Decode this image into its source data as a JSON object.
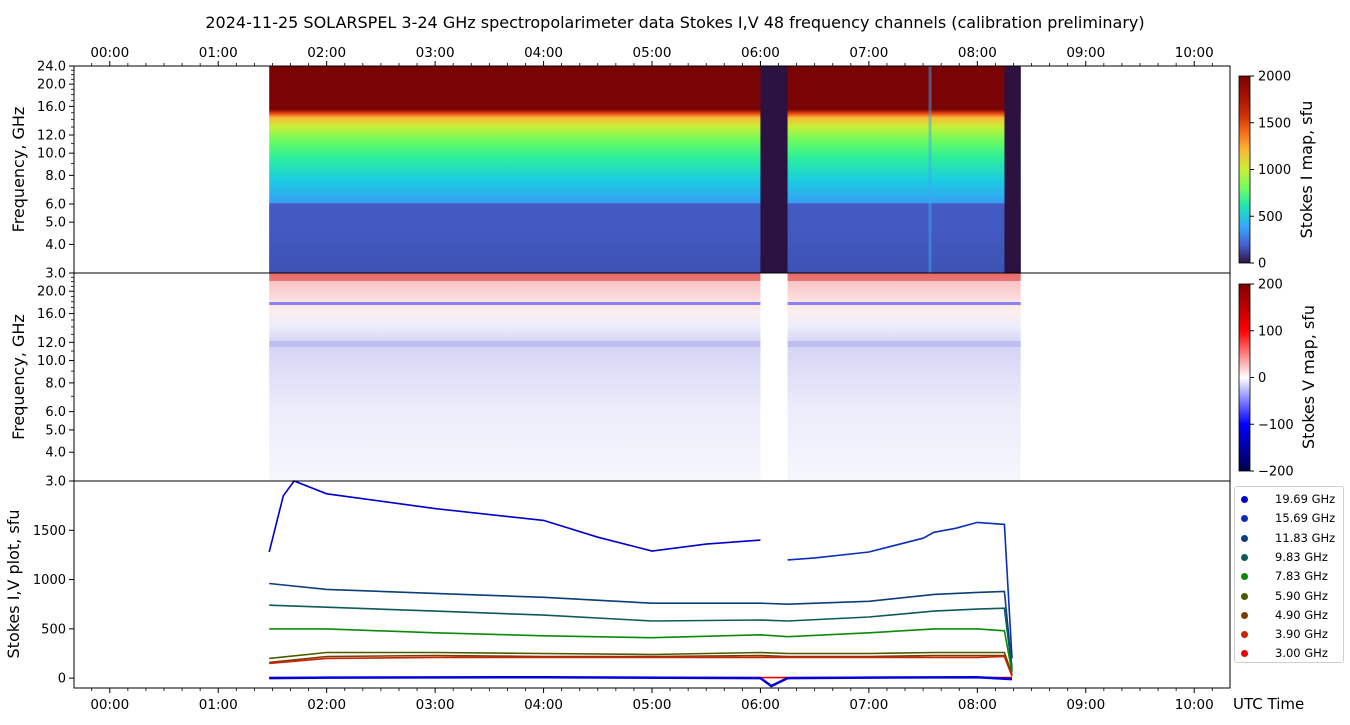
{
  "title": "2024-11-25  SOLARSPEL  3-24 GHz spectropolarimeter data   Stokes I,V   48 frequency channels   (calibration preliminary)",
  "time_label": "UTC Time",
  "time_ticks": [
    "00:00",
    "01:00",
    "02:00",
    "03:00",
    "04:00",
    "05:00",
    "06:00",
    "07:00",
    "08:00",
    "09:00",
    "10:00"
  ],
  "panels": {
    "stokes_i_map": {
      "ylabel": "Frequency, GHz",
      "colorbar_label": "Stokes I map, sfu",
      "colorbar_ticks": [
        "0",
        "500",
        "1000",
        "1500",
        "2000"
      ]
    },
    "stokes_v_map": {
      "ylabel": "Frequency, GHz",
      "colorbar_label": "Stokes V map, sfu",
      "colorbar_ticks": [
        "−200",
        "−100",
        "0",
        "100",
        "200"
      ]
    },
    "plot": {
      "ylabel": "Stokes I,V plot, sfu",
      "yticks": [
        "0",
        "500",
        "1000",
        "1500"
      ]
    }
  },
  "freq_ticks": [
    "3.0",
    "4.0",
    "5.0",
    "6.0",
    "8.0",
    "10.0",
    "12.0",
    "16.0",
    "20.0",
    "24.0"
  ],
  "freq_ticks_v": [
    "3.0",
    "4.0",
    "5.0",
    "6.0",
    "8.0",
    "10.0",
    "12.0",
    "16.0",
    "20.0"
  ],
  "chart_data": [
    {
      "type": "heatmap",
      "name": "stokes_i_map",
      "x_range_hours": [
        -0.33,
        10.33
      ],
      "y_scale": "log",
      "ylim_ghz": [
        3.0,
        24.0
      ],
      "data_start_hour": 1.47,
      "data_end_hour": 8.4,
      "gap_hours": [
        6.0,
        6.25
      ],
      "colormap": "turbo",
      "clim": [
        0,
        2000
      ],
      "profile": [
        {
          "ghz": 3.0,
          "sfu": 150
        },
        {
          "ghz": 4.0,
          "sfu": 170
        },
        {
          "ghz": 5.0,
          "sfu": 200
        },
        {
          "ghz": 5.9,
          "sfu": 220
        },
        {
          "ghz": 6.0,
          "sfu": 330
        },
        {
          "ghz": 8.0,
          "sfu": 550
        },
        {
          "ghz": 10.0,
          "sfu": 780
        },
        {
          "ghz": 12.0,
          "sfu": 1050
        },
        {
          "ghz": 14.0,
          "sfu": 1280
        },
        {
          "ghz": 15.7,
          "sfu": 1500
        },
        {
          "ghz": 17.0,
          "sfu": 2000
        },
        {
          "ghz": 24.0,
          "sfu": 2000
        }
      ]
    },
    {
      "type": "heatmap",
      "name": "stokes_v_map",
      "x_range_hours": [
        -0.33,
        10.33
      ],
      "y_scale": "log",
      "ylim_ghz": [
        3.0,
        24.0
      ],
      "colormap": "seismic",
      "clim": [
        -200,
        200
      ]
    },
    {
      "type": "line",
      "name": "stokes_i_v_plot",
      "x_range_hours": [
        -0.33,
        10.33
      ],
      "ylim": [
        -100,
        2000
      ],
      "series": [
        {
          "name": "19.69 GHz",
          "color": "#0000cc",
          "x": [
            1.47,
            1.6,
            1.7,
            2.0,
            3.0,
            4.0,
            4.5,
            5.0,
            5.5,
            6.0
          ],
          "y": [
            1280,
            1850,
            2000,
            1870,
            1720,
            1600,
            1430,
            1290,
            1360,
            1400
          ]
        },
        {
          "name": "15.69 GHz",
          "color": "#0a2fb8",
          "x": [
            6.25,
            6.5,
            7.0,
            7.5,
            7.6,
            7.8,
            8.0,
            8.25,
            8.32
          ],
          "y": [
            1200,
            1220,
            1280,
            1420,
            1480,
            1520,
            1580,
            1560,
            200
          ]
        },
        {
          "name": "11.83 GHz",
          "color": "#0b3f7a",
          "x": [
            1.47,
            2.0,
            3.0,
            4.0,
            5.0,
            6.0,
            6.25,
            7.0,
            7.6,
            8.0,
            8.25,
            8.32
          ],
          "y": [
            960,
            900,
            860,
            820,
            760,
            760,
            750,
            780,
            850,
            870,
            880,
            100
          ]
        },
        {
          "name": "9.83 GHz",
          "color": "#0d5a5a",
          "x": [
            1.47,
            2.0,
            3.0,
            4.0,
            5.0,
            6.0,
            6.25,
            7.0,
            7.6,
            8.0,
            8.25,
            8.32
          ],
          "y": [
            740,
            720,
            680,
            640,
            580,
            590,
            580,
            620,
            680,
            700,
            710,
            80
          ]
        },
        {
          "name": "7.83 GHz",
          "color": "#0a8a0a",
          "x": [
            1.47,
            2.0,
            3.0,
            4.0,
            5.0,
            6.0,
            6.25,
            7.0,
            7.6,
            8.0,
            8.25,
            8.32
          ],
          "y": [
            500,
            500,
            460,
            430,
            410,
            440,
            420,
            460,
            500,
            500,
            480,
            60
          ]
        },
        {
          "name": "5.90 GHz",
          "color": "#4c5a00",
          "x": [
            1.47,
            2.0,
            3.0,
            4.0,
            5.0,
            6.0,
            6.25,
            7.0,
            7.6,
            8.0,
            8.25,
            8.32
          ],
          "y": [
            200,
            260,
            260,
            250,
            240,
            260,
            250,
            250,
            260,
            260,
            260,
            40
          ]
        },
        {
          "name": "4.90 GHz",
          "color": "#7a3d00",
          "x": [
            1.47,
            2.0,
            3.0,
            4.0,
            5.0,
            6.0,
            6.25,
            7.0,
            7.6,
            8.0,
            8.25,
            8.32
          ],
          "y": [
            160,
            220,
            230,
            220,
            220,
            230,
            220,
            220,
            230,
            230,
            230,
            30
          ]
        },
        {
          "name": "3.90 GHz",
          "color": "#cc2200",
          "x": [
            1.47,
            2.0,
            3.0,
            4.0,
            5.0,
            6.0,
            6.25,
            7.0,
            7.6,
            8.0,
            8.25,
            8.32
          ],
          "y": [
            150,
            200,
            210,
            210,
            210,
            210,
            210,
            210,
            210,
            210,
            220,
            20
          ]
        },
        {
          "name": "3.00 GHz",
          "color": "#ee0000",
          "x": [
            1.47,
            2.0,
            3.0,
            4.0,
            5.0,
            6.0,
            6.25,
            7.0,
            8.0,
            8.32
          ],
          "y": [
            5,
            5,
            5,
            5,
            5,
            5,
            5,
            5,
            5,
            5
          ]
        }
      ],
      "stokes_v_series": {
        "color": "#0000dd",
        "x": [
          1.47,
          2.0,
          4.0,
          6.0,
          6.1,
          6.25,
          7.0,
          8.0,
          8.32
        ],
        "y": [
          0,
          5,
          10,
          0,
          -80,
          0,
          5,
          10,
          -10
        ]
      }
    }
  ]
}
